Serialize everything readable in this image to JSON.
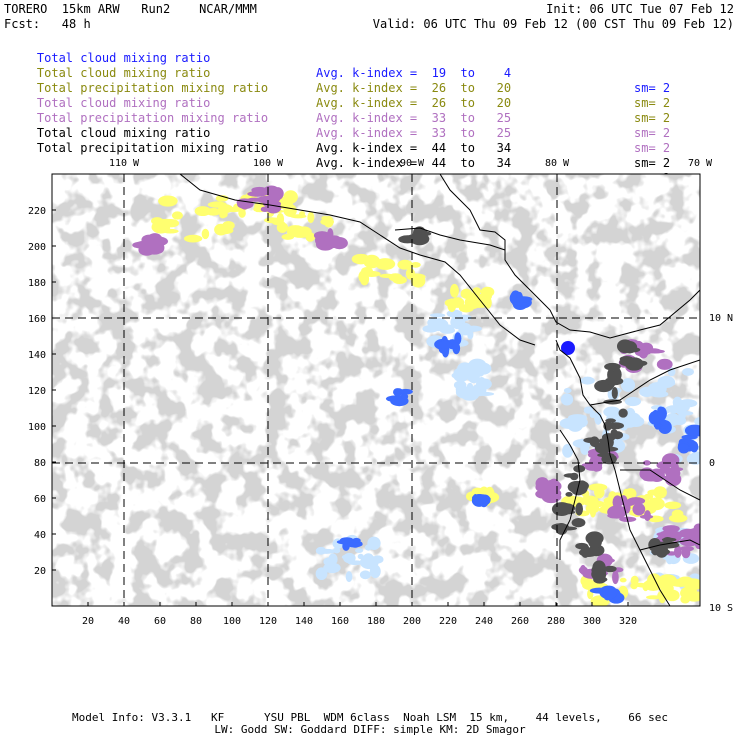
{
  "header": {
    "left_line1": "TORERO  15km ARW   Run2    NCAR/MMM",
    "left_line2": "Fcst:   48 h",
    "right_line1": "Init: 06 UTC Tue 07 Feb 12",
    "right_line2": "Valid: 06 UTC Thu 09 Feb 12 (00 CST Thu 09 Feb 12)"
  },
  "legend_rows": [
    {
      "name": "Total cloud mixing ratio",
      "idx": "Avg. k-index =  19  to    4",
      "sm": "sm= 2",
      "color": "#1a1aff"
    },
    {
      "name": "Total cloud mixing ratio",
      "idx": "Avg. k-index =  26  to   20",
      "sm": "sm= 2",
      "color": "#8a8a10"
    },
    {
      "name": "Total precipitation mixing ratio",
      "idx": "Avg. k-index =  26  to   20",
      "sm": "sm= 2",
      "color": "#8a8a10"
    },
    {
      "name": "Total cloud mixing ratio",
      "idx": "Avg. k-index =  33  to   25",
      "sm": "sm= 2",
      "color": "#b070c0"
    },
    {
      "name": "Total precipitation mixing ratio",
      "idx": "Avg. k-index =  33  to   25",
      "sm": "sm= 2",
      "color": "#b070c0"
    },
    {
      "name": "Total cloud mixing ratio",
      "idx": "Avg. k-index =  44  to   34",
      "sm": "sm= 2",
      "color": "#000000"
    },
    {
      "name": "Total precipitation mixing ratio",
      "idx": "Avg. k-index =  44  to   34",
      "sm": "sm= 2",
      "color": "#000000"
    }
  ],
  "map": {
    "lon_labels": [
      "110 W",
      "100 W",
      "90 W",
      "80 W",
      "70 W"
    ],
    "lat_labels": [
      "10 N",
      "0",
      "10 S"
    ],
    "y_ticks": [
      "220",
      "200",
      "180",
      "160",
      "140",
      "120",
      "100",
      "80",
      "60",
      "40",
      "20"
    ],
    "x_ticks": [
      "20",
      "40",
      "60",
      "80",
      "100",
      "120",
      "140",
      "160",
      "180",
      "200",
      "220",
      "240",
      "260",
      "280",
      "300",
      "320"
    ],
    "colors": {
      "cloud_gray": "#a8a8a8",
      "dark_gray": "#505050",
      "yellow": "#ffff70",
      "purple": "#b070c0",
      "light_blue": "#c8e4ff",
      "blue": "#3b6bff",
      "deep_blue": "#1a1aff",
      "coastline": "#000000"
    }
  },
  "footer": {
    "line1": "Model Info: V3.3.1   KF      YSU PBL  WDM 6class  Noah LSM  15 km,    44 levels,    66 sec",
    "line2": "LW: Godd SW: Goddard DIFF: simple KM: 2D Smagor"
  }
}
